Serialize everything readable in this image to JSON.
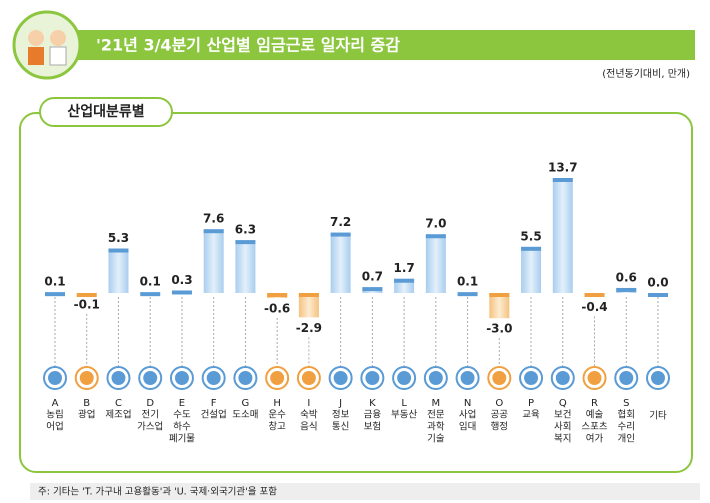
{
  "chart_data": {
    "type": "bar",
    "title": "'21년 3/4분기 산업별 임금근로 일자리 증감",
    "subtitle": "(전년동기대비, 만개)",
    "panel_label": "산업대분류별",
    "footnote": "주: 기타는 'T. 가구내 고용활동'과 'U. 국제·외국기관'을 포함",
    "category_codes": [
      "A",
      "B",
      "C",
      "D",
      "E",
      "F",
      "G",
      "H",
      "I",
      "J",
      "K",
      "L",
      "M",
      "N",
      "O",
      "P",
      "Q",
      "R",
      "S",
      null
    ],
    "categories": [
      [
        "농림",
        "어업"
      ],
      [
        "광업"
      ],
      [
        "제조업"
      ],
      [
        "전기",
        "가스업"
      ],
      [
        "수도",
        "하수",
        "폐기물"
      ],
      [
        "건설업"
      ],
      [
        "도소매"
      ],
      [
        "운수",
        "창고"
      ],
      [
        "숙박",
        "음식"
      ],
      [
        "정보",
        "통신"
      ],
      [
        "금융",
        "보험"
      ],
      [
        "부동산"
      ],
      [
        "전문",
        "과학",
        "기술"
      ],
      [
        "사업",
        "임대"
      ],
      [
        "공공",
        "행정"
      ],
      [
        "교육"
      ],
      [
        "보건",
        "사회",
        "복지"
      ],
      [
        "예술",
        "스포츠",
        "여가"
      ],
      [
        "협회",
        "수리",
        "개인"
      ],
      [
        "기타"
      ]
    ],
    "values": [
      0.1,
      -0.1,
      5.3,
      0.1,
      0.3,
      7.6,
      6.3,
      -0.6,
      -2.9,
      7.2,
      0.7,
      1.7,
      7.0,
      0.1,
      -3.0,
      5.5,
      13.7,
      -0.4,
      0.6,
      0.0
    ],
    "value_labels": [
      "0.1",
      "-0.1",
      "5.3",
      "0.1",
      "0.3",
      "7.6",
      "6.3",
      "-0.6",
      "-2.9",
      "7.2",
      "0.7",
      "1.7",
      "7.0",
      "0.1",
      "-3.0",
      "5.5",
      "13.7",
      "-0.4",
      "0.6",
      "0.0"
    ],
    "color": "#5b9bd5",
    "negative_color": "#f0a040"
  }
}
